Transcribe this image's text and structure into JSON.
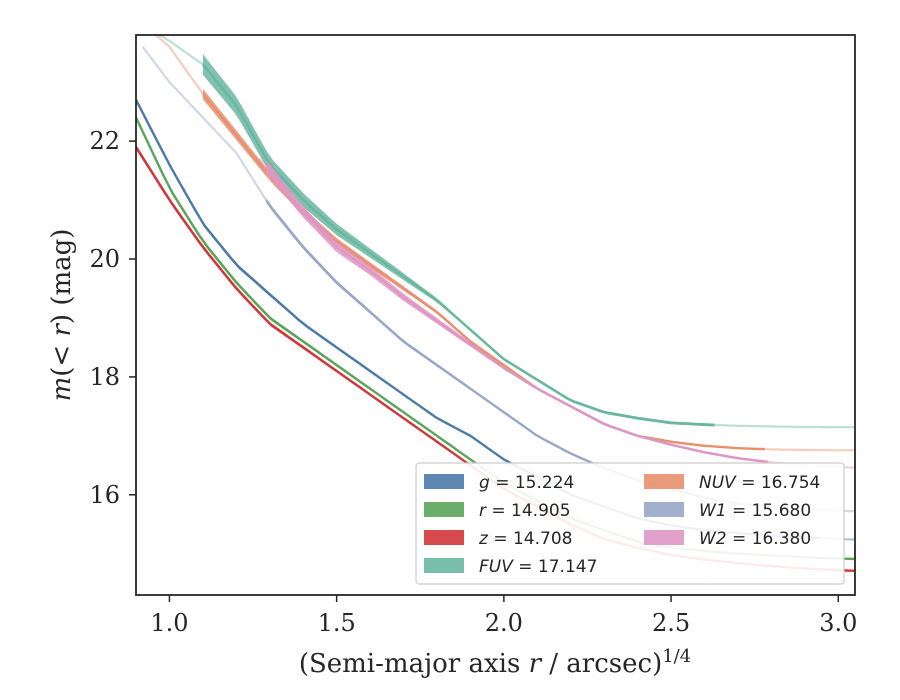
{
  "chart_data": {
    "type": "line",
    "xlabel": "(Semi-major axis r / arcsec)^1/4",
    "ylabel": "m(< r) (mag)",
    "xlim": [
      0.9,
      3.05
    ],
    "ylim": [
      23.8,
      14.3
    ],
    "y_inverted": true,
    "x_ticks": [
      "1.0",
      "1.5",
      "2.0",
      "2.5",
      "3.0"
    ],
    "y_ticks": [
      "16",
      "18",
      "20",
      "22"
    ],
    "grid": false,
    "legend_position": "bottom-right",
    "series": [
      {
        "name": "g = 15.224",
        "band": "g",
        "total_mag": "15.224",
        "color": "#4c7ba8",
        "x": [
          0.9,
          1.0,
          1.1,
          1.2,
          1.3,
          1.4,
          1.5,
          1.6,
          1.7,
          1.8,
          1.9,
          2.0,
          2.1,
          2.2,
          2.3,
          2.4,
          2.5,
          2.6,
          2.7,
          2.8,
          2.9,
          3.0,
          3.05
        ],
        "y": [
          22.7,
          21.6,
          20.6,
          19.9,
          19.4,
          18.9,
          18.5,
          18.1,
          17.7,
          17.3,
          17.0,
          16.6,
          16.3,
          16.0,
          15.8,
          15.6,
          15.48,
          15.4,
          15.35,
          15.31,
          15.28,
          15.25,
          15.24
        ],
        "solid_until": 2.95,
        "band_width": [
          0.08,
          0.02
        ]
      },
      {
        "name": "r = 14.905",
        "band": "r",
        "total_mag": "14.905",
        "color": "#5aa55a",
        "x": [
          0.9,
          1.0,
          1.1,
          1.2,
          1.3,
          1.4,
          1.5,
          1.6,
          1.7,
          1.8,
          1.9,
          2.0,
          2.1,
          2.2,
          2.3,
          2.4,
          2.5,
          2.6,
          2.7,
          2.8,
          2.9,
          3.0,
          3.05
        ],
        "y": [
          22.4,
          21.2,
          20.3,
          19.6,
          19.0,
          18.6,
          18.2,
          17.8,
          17.4,
          17.0,
          16.6,
          16.2,
          15.9,
          15.6,
          15.4,
          15.2,
          15.1,
          15.05,
          15.0,
          14.97,
          14.94,
          14.92,
          14.91
        ],
        "solid_until": 3.05,
        "band_width": [
          0.08,
          0.02
        ]
      },
      {
        "name": "z = 14.708",
        "band": "z",
        "total_mag": "14.708",
        "color": "#d1363a",
        "x": [
          0.9,
          1.0,
          1.1,
          1.2,
          1.3,
          1.4,
          1.5,
          1.6,
          1.7,
          1.8,
          1.9,
          2.0,
          2.1,
          2.2,
          2.3,
          2.4,
          2.5,
          2.6,
          2.7,
          2.8,
          2.9,
          3.0,
          3.05
        ],
        "y": [
          21.9,
          21.0,
          20.2,
          19.5,
          18.9,
          18.5,
          18.1,
          17.7,
          17.3,
          16.9,
          16.5,
          16.1,
          15.8,
          15.5,
          15.25,
          15.1,
          14.98,
          14.9,
          14.84,
          14.79,
          14.75,
          14.72,
          14.71
        ],
        "solid_until": 3.05,
        "band_width": [
          0.08,
          0.02
        ]
      },
      {
        "name": "FUV = 17.147",
        "band": "FUV",
        "total_mag": "17.147",
        "color": "#6ab7a0",
        "x": [
          0.97,
          1.0,
          1.1,
          1.2,
          1.3,
          1.4,
          1.5,
          1.6,
          1.7,
          1.8,
          1.9,
          2.0,
          2.1,
          2.2,
          2.3,
          2.4,
          2.5,
          2.6,
          2.7,
          2.8,
          2.9,
          3.0,
          3.05
        ],
        "y": [
          23.8,
          23.7,
          23.3,
          22.6,
          21.6,
          21.0,
          20.5,
          20.1,
          19.7,
          19.3,
          18.8,
          18.3,
          17.95,
          17.6,
          17.4,
          17.3,
          17.22,
          17.19,
          17.17,
          17.16,
          17.15,
          17.148,
          17.147
        ],
        "solid_from": 1.1,
        "solid_until": 2.63,
        "band_width": [
          0.35,
          0.05
        ]
      },
      {
        "name": "NUV = 16.754",
        "band": "NUV",
        "total_mag": "16.754",
        "color": "#e8906e",
        "x": [
          0.96,
          1.0,
          1.1,
          1.2,
          1.3,
          1.4,
          1.5,
          1.6,
          1.7,
          1.8,
          1.9,
          2.0,
          2.1,
          2.2,
          2.3,
          2.4,
          2.5,
          2.6,
          2.7,
          2.8,
          2.9,
          3.0,
          3.05
        ],
        "y": [
          23.8,
          23.6,
          22.8,
          22.1,
          21.4,
          20.8,
          20.3,
          19.9,
          19.5,
          19.1,
          18.6,
          18.2,
          17.8,
          17.5,
          17.2,
          17.0,
          16.9,
          16.83,
          16.79,
          16.77,
          16.76,
          16.755,
          16.754
        ],
        "solid_from": 1.1,
        "solid_until": 2.78,
        "band_width": [
          0.18,
          0.03
        ]
      },
      {
        "name": "W1 = 15.680",
        "band": "W1",
        "total_mag": "15.680",
        "color": "#97a7c8",
        "x": [
          0.92,
          1.0,
          1.1,
          1.2,
          1.3,
          1.4,
          1.5,
          1.6,
          1.7,
          1.8,
          1.9,
          2.0,
          2.1,
          2.2,
          2.3,
          2.4,
          2.5,
          2.6,
          2.7,
          2.8,
          2.9,
          3.0,
          3.05
        ],
        "y": [
          23.6,
          23.0,
          22.4,
          21.8,
          20.9,
          20.2,
          19.6,
          19.1,
          18.6,
          18.2,
          17.8,
          17.4,
          17.0,
          16.7,
          16.45,
          16.25,
          16.1,
          15.95,
          15.85,
          15.8,
          15.76,
          15.73,
          15.72
        ],
        "solid_from": 1.29,
        "solid_until": 2.82,
        "band_width": [
          0.08,
          0.03
        ]
      },
      {
        "name": "W2 = 16.380",
        "band": "W2",
        "total_mag": "16.380",
        "color": "#de97c4",
        "x": [
          1.27,
          1.3,
          1.4,
          1.5,
          1.6,
          1.7,
          1.8,
          1.9,
          2.0,
          2.1,
          2.2,
          2.3,
          2.4,
          2.5,
          2.6,
          2.7,
          2.8,
          2.9,
          3.0,
          3.05
        ],
        "y": [
          21.7,
          21.5,
          20.8,
          20.2,
          19.8,
          19.35,
          18.95,
          18.55,
          18.15,
          17.8,
          17.5,
          17.2,
          17.0,
          16.85,
          16.72,
          16.62,
          16.55,
          16.5,
          16.47,
          16.46
        ],
        "solid_from": 1.29,
        "solid_until": 2.79,
        "band_width": [
          0.22,
          0.04
        ]
      }
    ],
    "legend": [
      [
        "g = 15.224",
        "r = 14.905",
        "z = 14.708",
        "FUV = 17.147"
      ],
      [
        "NUV = 16.754",
        "W1 = 15.680",
        "W2 = 16.380"
      ]
    ]
  }
}
